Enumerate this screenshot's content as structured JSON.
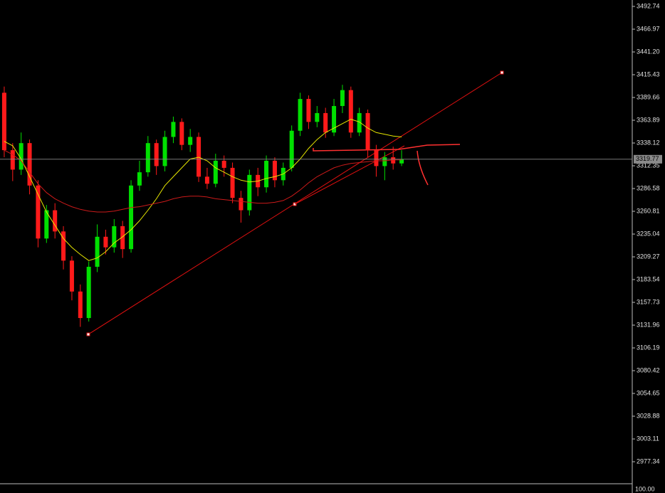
{
  "chart_data": {
    "type": "candlestick",
    "categories": [
      null,
      null,
      null,
      null,
      null,
      null,
      null,
      null,
      null,
      null,
      null,
      null,
      null,
      null,
      null,
      null,
      null,
      null,
      null,
      null,
      null,
      null,
      null,
      null,
      null,
      null,
      null,
      null,
      null,
      null,
      null,
      null,
      null,
      null,
      null,
      null,
      null,
      null,
      null,
      null,
      null,
      null,
      null,
      null,
      null,
      null,
      null,
      null
    ],
    "open": [
      3395,
      3330,
      3308,
      3338,
      3290,
      3230,
      3262,
      3238,
      3205,
      3170,
      3140,
      3198,
      3232,
      3220,
      3244,
      3218,
      3290,
      3305,
      3338,
      3312,
      3345,
      3362,
      3336,
      3345,
      3300,
      3292,
      3318,
      3310,
      3276,
      3262,
      3302,
      3288,
      3318,
      3296,
      3310,
      3352,
      3388,
      3362,
      3372,
      3350,
      3380,
      3398,
      3350,
      3372,
      3330,
      3312,
      3322,
      3315
    ],
    "high": [
      3402,
      3338,
      3350,
      3342,
      3296,
      3268,
      3270,
      3244,
      3210,
      3178,
      3204,
      3246,
      3240,
      3252,
      3250,
      3296,
      3318,
      3346,
      3342,
      3352,
      3368,
      3366,
      3354,
      3350,
      3310,
      3326,
      3324,
      3316,
      3284,
      3308,
      3310,
      3324,
      3322,
      3316,
      3358,
      3395,
      3392,
      3380,
      3378,
      3388,
      3404,
      3402,
      3378,
      3376,
      3336,
      3328,
      3334,
      3330
    ],
    "low": [
      3322,
      3295,
      3302,
      3280,
      3220,
      3225,
      3230,
      3195,
      3160,
      3130,
      3136,
      3192,
      3212,
      3214,
      3208,
      3214,
      3284,
      3300,
      3302,
      3306,
      3338,
      3330,
      3328,
      3294,
      3286,
      3288,
      3300,
      3270,
      3248,
      3256,
      3278,
      3282,
      3288,
      3290,
      3306,
      3346,
      3354,
      3356,
      3344,
      3346,
      3372,
      3344,
      3346,
      3322,
      3300,
      3296,
      3308,
      3312
    ],
    "close": [
      3330,
      3308,
      3338,
      3290,
      3230,
      3262,
      3238,
      3205,
      3170,
      3140,
      3198,
      3232,
      3220,
      3244,
      3218,
      3290,
      3305,
      3338,
      3312,
      3345,
      3362,
      3336,
      3345,
      3300,
      3292,
      3318,
      3310,
      3276,
      3262,
      3302,
      3288,
      3318,
      3296,
      3310,
      3352,
      3388,
      3362,
      3372,
      3350,
      3380,
      3398,
      3350,
      3372,
      3330,
      3312,
      3322,
      3315,
      3320
    ],
    "up_color": "#00e000",
    "down_color": "#ff1a1a",
    "series": [
      {
        "color": "#e6e600",
        "values": [
          3340,
          3335,
          3320,
          3300,
          3280,
          3260,
          3245,
          3230,
          3220,
          3212,
          3205,
          3208,
          3215,
          3225,
          3232,
          3240,
          3250,
          3262,
          3275,
          3290,
          3300,
          3310,
          3320,
          3322,
          3318,
          3310,
          3305,
          3300,
          3296,
          3294,
          3295,
          3298,
          3300,
          3303,
          3310,
          3320,
          3332,
          3342,
          3350,
          3355,
          3360,
          3365,
          3362,
          3355,
          3350,
          3348,
          3346,
          3345
        ]
      },
      {
        "color": "#cc1a1a",
        "values": [
          3330,
          3325,
          3318,
          3305,
          3292,
          3282,
          3275,
          3270,
          3266,
          3263,
          3261,
          3260,
          3260,
          3261,
          3263,
          3265,
          3266,
          3268,
          3270,
          3272,
          3275,
          3277,
          3278,
          3278,
          3277,
          3275,
          3274,
          3273,
          3272,
          3271,
          3270,
          3270,
          3271,
          3273,
          3278,
          3285,
          3293,
          3300,
          3305,
          3310,
          3313,
          3315,
          3316,
          3317,
          3318,
          3318,
          3319,
          3319
        ]
      }
    ],
    "ylim": [
      2952.4,
      3500.0
    ],
    "yticks": [
      3492.74,
      3466.97,
      {
        "value": 3441.2,
        "label": "3441.20"
      },
      3415.43,
      3389.66,
      3363.89,
      3338.12,
      3312.35,
      3286.58,
      3260.81,
      3235.04,
      3209.27,
      3183.54,
      3157.73,
      3131.96,
      3106.19,
      3080.42,
      3054.65,
      3028.88,
      3003.11,
      2977.34
    ],
    "last_price": 3319.77,
    "indicator_label": "100.00"
  }
}
